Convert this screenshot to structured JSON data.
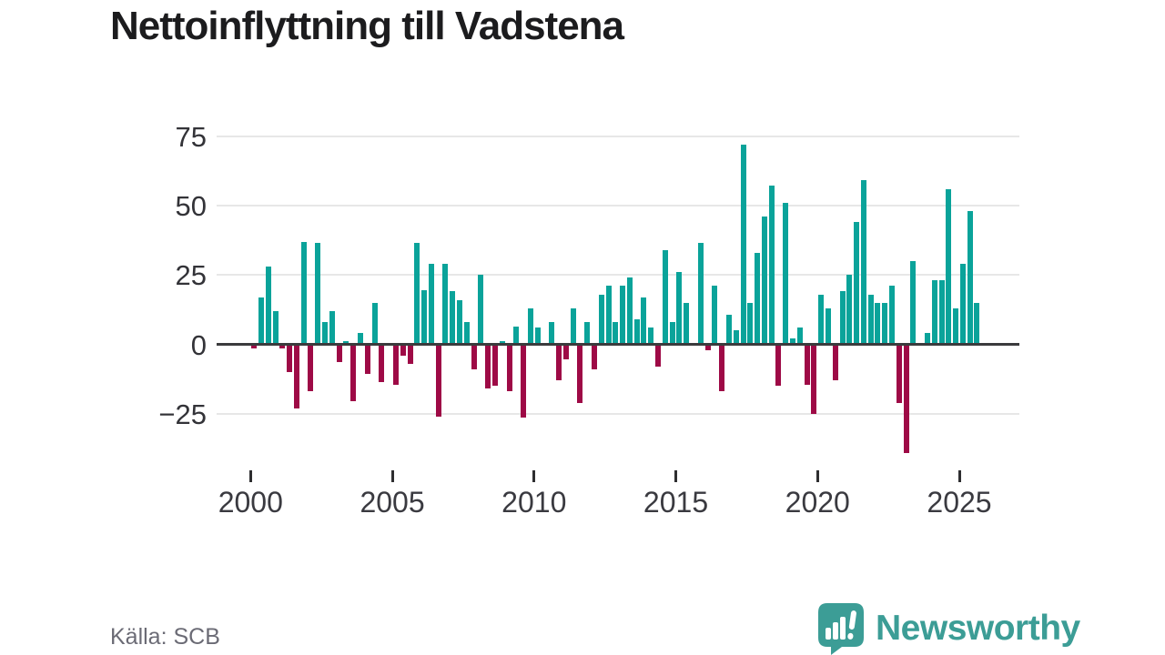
{
  "title": "Nettoinflyttning till Vadstena",
  "source": "Källa: SCB",
  "brand": {
    "name": "Newsworthy"
  },
  "chart_data": {
    "type": "bar",
    "title": "Nettoinflyttning till Vadstena",
    "frequency": "quarterly",
    "start": {
      "year": 2000,
      "quarter": 1
    },
    "end": {
      "year": 2025,
      "quarter": 3
    },
    "grid": true,
    "legend": "none",
    "ylim": [
      -45,
      80
    ],
    "y_ticks": [
      {
        "label": "75",
        "value": 75
      },
      {
        "label": "50",
        "value": 50
      },
      {
        "label": "25",
        "value": 25
      },
      {
        "label": "0",
        "value": 0
      },
      {
        "label": "−25",
        "value": -25
      }
    ],
    "x_ticks": [
      {
        "label": "2000",
        "year": 2000
      },
      {
        "label": "2005",
        "year": 2005
      },
      {
        "label": "2010",
        "year": 2010
      },
      {
        "label": "2015",
        "year": 2015
      },
      {
        "label": "2020",
        "year": 2020
      },
      {
        "label": "2025",
        "year": 2025
      }
    ],
    "colors": {
      "positive": "#0aa39a",
      "negative": "#9e0a46"
    },
    "series": [
      {
        "year": 2000,
        "values": [
          -1.5,
          17,
          28,
          12
        ]
      },
      {
        "year": 2001,
        "values": [
          -1.5,
          -10,
          -23,
          37
        ]
      },
      {
        "year": 2002,
        "values": [
          -17,
          36.5,
          8,
          12
        ]
      },
      {
        "year": 2003,
        "values": [
          -6.5,
          1,
          -20.5,
          4
        ]
      },
      {
        "year": 2004,
        "values": [
          -10.5,
          15,
          -13.5,
          0
        ]
      },
      {
        "year": 2005,
        "values": [
          -14.5,
          -4,
          -7,
          36.5
        ]
      },
      {
        "year": 2006,
        "values": [
          19.5,
          29,
          -26,
          29
        ]
      },
      {
        "year": 2007,
        "values": [
          19,
          16,
          8,
          -9
        ]
      },
      {
        "year": 2008,
        "values": [
          25,
          -16,
          -15,
          1
        ]
      },
      {
        "year": 2009,
        "values": [
          -17,
          6.5,
          -26.5,
          13
        ]
      },
      {
        "year": 2010,
        "values": [
          6,
          0,
          8,
          -13
        ]
      },
      {
        "year": 2011,
        "values": [
          -5.5,
          13,
          -21,
          8
        ]
      },
      {
        "year": 2012,
        "values": [
          -9,
          18,
          21,
          8
        ]
      },
      {
        "year": 2013,
        "values": [
          21,
          24,
          9,
          17
        ]
      },
      {
        "year": 2014,
        "values": [
          6,
          -8,
          34,
          8
        ]
      },
      {
        "year": 2015,
        "values": [
          26,
          15,
          0,
          36.5
        ]
      },
      {
        "year": 2016,
        "values": [
          -2,
          21,
          -17,
          10.5
        ]
      },
      {
        "year": 2017,
        "values": [
          5,
          72,
          15,
          33
        ]
      },
      {
        "year": 2018,
        "values": [
          46,
          57,
          -15,
          51
        ]
      },
      {
        "year": 2019,
        "values": [
          2,
          6,
          -14.5,
          -25
        ]
      },
      {
        "year": 2020,
        "values": [
          18,
          13,
          -13,
          19
        ]
      },
      {
        "year": 2021,
        "values": [
          25,
          44,
          59,
          18
        ]
      },
      {
        "year": 2022,
        "values": [
          15,
          15,
          21,
          -21
        ]
      },
      {
        "year": 2023,
        "values": [
          -39,
          30,
          0,
          4
        ]
      },
      {
        "year": 2024,
        "values": [
          23,
          23,
          56,
          13
        ]
      },
      {
        "year": 2025,
        "values": [
          29,
          48,
          15
        ]
      }
    ]
  }
}
